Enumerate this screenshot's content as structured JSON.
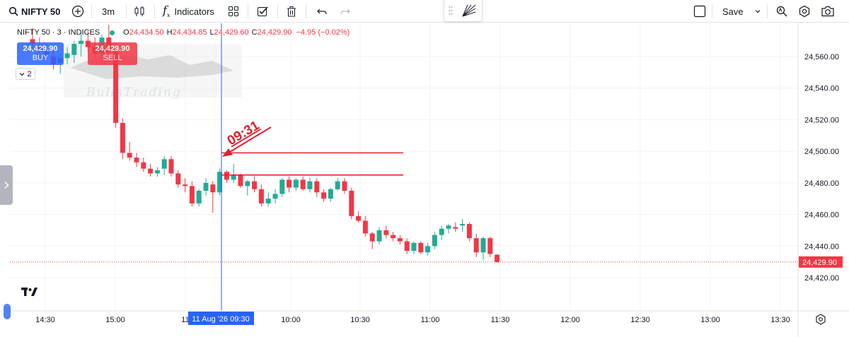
{
  "toolbar": {
    "symbol": "NIFTY 50",
    "interval": "3m",
    "indicators_label": "Indicators",
    "save_label": "Save"
  },
  "legend": {
    "name": "NIFTY 50 · 3 · INDICES",
    "o_label": "O",
    "o": "24,434.50",
    "h_label": "H",
    "h": "24,434.85",
    "l_label": "L",
    "l": "24,429.60",
    "c_label": "C",
    "c": "24,429.90",
    "change": "−4.95 (−0.02%)"
  },
  "trade": {
    "buy_price": "24,429.90",
    "buy_label": "BUY",
    "sell_price": "24,429.90",
    "sell_label": "SELL"
  },
  "collapse_count": "2",
  "colors": {
    "up": "#22ab94",
    "down": "#f23645",
    "crosshair": "#2962ff",
    "last_price": "#f23645"
  },
  "chart_data": {
    "type": "candlestick",
    "x_axis_ticks": [
      "14:30",
      "15:00",
      "11",
      "10:00",
      "10:30",
      "11:00",
      "11:30",
      "12:00",
      "12:30",
      "13:00",
      "13:30"
    ],
    "y_axis_ticks": [
      24560,
      24540,
      24520,
      24500,
      24480,
      24460,
      24440,
      24420
    ],
    "y_axis_tick_labels": [
      "24,560.00",
      "24,540.00",
      "24,520.00",
      "24,500.00",
      "24,480.00",
      "24,460.00",
      "24,440.00",
      "24,420.00"
    ],
    "ylim": [
      24410,
      24575
    ],
    "last_price": 24429.9,
    "last_price_label": "24,429.90",
    "crosshair_label": "11 Aug '26   09:30",
    "annotation": {
      "text": "09:31",
      "type": "arrow"
    },
    "horizontal_lines": [
      24499,
      24485
    ],
    "candles": [
      {
        "o": 24571,
        "h": 24578,
        "l": 24565,
        "c": 24568
      },
      {
        "o": 24567,
        "h": 24572,
        "l": 24562,
        "c": 24564
      },
      {
        "o": 24563,
        "h": 24568,
        "l": 24558,
        "c": 24561
      },
      {
        "o": 24560,
        "h": 24565,
        "l": 24552,
        "c": 24555
      },
      {
        "o": 24556,
        "h": 24562,
        "l": 24549,
        "c": 24559
      },
      {
        "o": 24559,
        "h": 24566,
        "l": 24555,
        "c": 24562
      },
      {
        "o": 24561,
        "h": 24570,
        "l": 24556,
        "c": 24568
      },
      {
        "o": 24568,
        "h": 24575,
        "l": 24560,
        "c": 24570
      },
      {
        "o": 24570,
        "h": 24576,
        "l": 24563,
        "c": 24566
      },
      {
        "o": 24566,
        "h": 24572,
        "l": 24559,
        "c": 24562
      },
      {
        "o": 24562,
        "h": 24574,
        "l": 24560,
        "c": 24572
      },
      {
        "o": 24572,
        "h": 24580,
        "l": 24560,
        "c": 24563
      },
      {
        "o": 24563,
        "h": 24568,
        "l": 24515,
        "c": 24518
      },
      {
        "o": 24518,
        "h": 24521,
        "l": 24495,
        "c": 24499
      },
      {
        "o": 24499,
        "h": 24506,
        "l": 24494,
        "c": 24496
      },
      {
        "o": 24496,
        "h": 24499,
        "l": 24490,
        "c": 24493
      },
      {
        "o": 24493,
        "h": 24496,
        "l": 24487,
        "c": 24489
      },
      {
        "o": 24489,
        "h": 24492,
        "l": 24484,
        "c": 24486
      },
      {
        "o": 24486,
        "h": 24490,
        "l": 24484,
        "c": 24488
      },
      {
        "o": 24489,
        "h": 24497,
        "l": 24485,
        "c": 24495
      },
      {
        "o": 24495,
        "h": 24497,
        "l": 24484,
        "c": 24486
      },
      {
        "o": 24486,
        "h": 24488,
        "l": 24477,
        "c": 24479
      },
      {
        "o": 24479,
        "h": 24483,
        "l": 24474,
        "c": 24478
      },
      {
        "o": 24478,
        "h": 24481,
        "l": 24465,
        "c": 24467
      },
      {
        "o": 24467,
        "h": 24476,
        "l": 24465,
        "c": 24475
      },
      {
        "o": 24475,
        "h": 24483,
        "l": 24472,
        "c": 24480
      },
      {
        "o": 24479,
        "h": 24481,
        "l": 24461,
        "c": 24474
      },
      {
        "o": 24474,
        "h": 24489,
        "l": 24472,
        "c": 24487
      },
      {
        "o": 24487,
        "h": 24488,
        "l": 24480,
        "c": 24482
      },
      {
        "o": 24482,
        "h": 24492,
        "l": 24480,
        "c": 24485
      },
      {
        "o": 24485,
        "h": 24486,
        "l": 24477,
        "c": 24478
      },
      {
        "o": 24478,
        "h": 24482,
        "l": 24472,
        "c": 24481
      },
      {
        "o": 24481,
        "h": 24484,
        "l": 24474,
        "c": 24476
      },
      {
        "o": 24476,
        "h": 24479,
        "l": 24465,
        "c": 24467
      },
      {
        "o": 24467,
        "h": 24474,
        "l": 24465,
        "c": 24470
      },
      {
        "o": 24470,
        "h": 24476,
        "l": 24467,
        "c": 24473
      },
      {
        "o": 24473,
        "h": 24483,
        "l": 24471,
        "c": 24482
      },
      {
        "o": 24482,
        "h": 24484,
        "l": 24474,
        "c": 24477
      },
      {
        "o": 24477,
        "h": 24483,
        "l": 24475,
        "c": 24482
      },
      {
        "o": 24482,
        "h": 24484,
        "l": 24475,
        "c": 24476
      },
      {
        "o": 24476,
        "h": 24483,
        "l": 24474,
        "c": 24481
      },
      {
        "o": 24481,
        "h": 24483,
        "l": 24471,
        "c": 24474
      },
      {
        "o": 24474,
        "h": 24476,
        "l": 24468,
        "c": 24470
      },
      {
        "o": 24470,
        "h": 24477,
        "l": 24468,
        "c": 24476
      },
      {
        "o": 24476,
        "h": 24483,
        "l": 24475,
        "c": 24481
      },
      {
        "o": 24481,
        "h": 24483,
        "l": 24473,
        "c": 24475
      },
      {
        "o": 24475,
        "h": 24477,
        "l": 24457,
        "c": 24459
      },
      {
        "o": 24459,
        "h": 24462,
        "l": 24455,
        "c": 24456
      },
      {
        "o": 24456,
        "h": 24459,
        "l": 24446,
        "c": 24448
      },
      {
        "o": 24448,
        "h": 24449,
        "l": 24438,
        "c": 24443
      },
      {
        "o": 24443,
        "h": 24452,
        "l": 24441,
        "c": 24450
      },
      {
        "o": 24450,
        "h": 24453,
        "l": 24445,
        "c": 24447
      },
      {
        "o": 24447,
        "h": 24449,
        "l": 24443,
        "c": 24445
      },
      {
        "o": 24445,
        "h": 24447,
        "l": 24441,
        "c": 24443
      },
      {
        "o": 24443,
        "h": 24445,
        "l": 24435,
        "c": 24437
      },
      {
        "o": 24437,
        "h": 24443,
        "l": 24435,
        "c": 24442
      },
      {
        "o": 24442,
        "h": 24443,
        "l": 24435,
        "c": 24436
      },
      {
        "o": 24436,
        "h": 24442,
        "l": 24434,
        "c": 24440
      },
      {
        "o": 24440,
        "h": 24449,
        "l": 24438,
        "c": 24447
      },
      {
        "o": 24447,
        "h": 24453,
        "l": 24444,
        "c": 24451
      },
      {
        "o": 24451,
        "h": 24454,
        "l": 24448,
        "c": 24453
      },
      {
        "o": 24452,
        "h": 24455,
        "l": 24449,
        "c": 24451
      },
      {
        "o": 24453,
        "h": 24457,
        "l": 24449,
        "c": 24454
      },
      {
        "o": 24454,
        "h": 24455,
        "l": 24443,
        "c": 24445
      },
      {
        "o": 24445,
        "h": 24448,
        "l": 24433,
        "c": 24436
      },
      {
        "o": 24436,
        "h": 24446,
        "l": 24431,
        "c": 24445
      },
      {
        "o": 24445,
        "h": 24446,
        "l": 24433,
        "c": 24435
      },
      {
        "o": 24434.5,
        "h": 24434.85,
        "l": 24429.6,
        "c": 24429.9
      }
    ]
  }
}
